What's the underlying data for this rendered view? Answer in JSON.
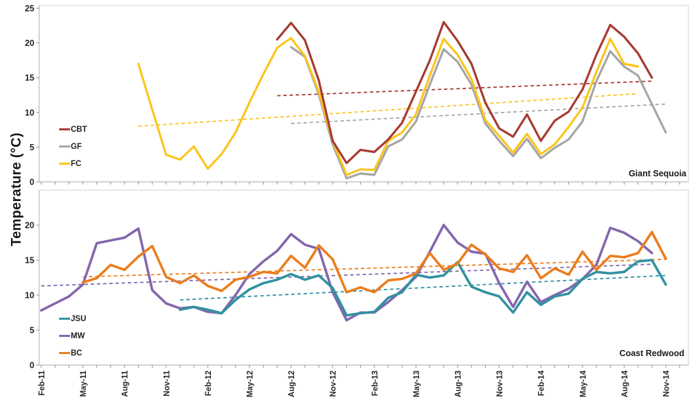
{
  "figure": {
    "y_axis_title": "Temperature (°C)",
    "x_tick_labels_shown": [
      "Feb-11",
      "May-11",
      "Aug-11",
      "Nov-11",
      "Feb-12",
      "May-12",
      "Aug-12",
      "Nov-12",
      "Feb-13",
      "May-13",
      "Aug-13",
      "Nov-13",
      "Feb-14",
      "May-14",
      "Aug-14",
      "Nov-14"
    ]
  },
  "chart_data": [
    {
      "type": "line",
      "title": "Giant Sequoia",
      "ylabel": "Temperature (°C)",
      "xlabel": "",
      "ylim": [
        0,
        25
      ],
      "yticks": [
        0,
        5,
        10,
        15,
        20,
        25
      ],
      "grid": false,
      "legend_position": "left-middle-inside",
      "x": [
        "Feb-11",
        "Mar-11",
        "Apr-11",
        "May-11",
        "Jun-11",
        "Jul-11",
        "Aug-11",
        "Sep-11",
        "Oct-11",
        "Nov-11",
        "Dec-11",
        "Jan-12",
        "Feb-12",
        "Mar-12",
        "Apr-12",
        "May-12",
        "Jun-12",
        "Jul-12",
        "Aug-12",
        "Sep-12",
        "Oct-12",
        "Nov-12",
        "Dec-12",
        "Jan-13",
        "Feb-13",
        "Mar-13",
        "Apr-13",
        "May-13",
        "Jun-13",
        "Jul-13",
        "Aug-13",
        "Sep-13",
        "Oct-13",
        "Nov-13",
        "Dec-13",
        "Jan-14",
        "Feb-14",
        "Mar-14",
        "Apr-14",
        "May-14",
        "Jun-14",
        "Jul-14",
        "Aug-14",
        "Sep-14",
        "Oct-14",
        "Nov-14"
      ],
      "series": [
        {
          "name": "CBT",
          "color": "#A63A32",
          "values": [
            null,
            null,
            null,
            null,
            null,
            null,
            null,
            null,
            null,
            null,
            null,
            null,
            null,
            null,
            null,
            null,
            null,
            20.5,
            22.9,
            20.4,
            14.6,
            5.9,
            2.7,
            4.6,
            4.3,
            6.1,
            8.5,
            13.0,
            17.5,
            23.0,
            20.3,
            17.0,
            11.4,
            7.7,
            6.5,
            9.7,
            5.9,
            8.8,
            10.1,
            13.3,
            18.3,
            22.6,
            20.9,
            18.5,
            15.0,
            null
          ]
        },
        {
          "name": "GF",
          "color": "#A6A6A6",
          "values": [
            null,
            null,
            null,
            null,
            null,
            null,
            null,
            null,
            null,
            null,
            null,
            null,
            null,
            null,
            null,
            null,
            null,
            null,
            19.4,
            18.0,
            12.6,
            5.4,
            0.5,
            1.2,
            1.0,
            5.1,
            6.1,
            8.7,
            14.0,
            19.1,
            17.3,
            14.0,
            8.4,
            5.9,
            3.7,
            6.2,
            3.4,
            4.9,
            6.1,
            8.7,
            14.5,
            18.8,
            16.6,
            15.3,
            11.2,
            7.1
          ]
        },
        {
          "name": "FC",
          "color": "#FBC51E",
          "values": [
            null,
            null,
            null,
            null,
            null,
            null,
            null,
            17.0,
            10.4,
            3.9,
            3.2,
            5.1,
            1.9,
            4.0,
            7.1,
            11.4,
            15.5,
            19.3,
            20.7,
            18.1,
            13.0,
            5.9,
            1.0,
            1.8,
            1.7,
            5.9,
            7.1,
            9.7,
            15.3,
            20.6,
            18.3,
            14.8,
            8.9,
            6.6,
            4.2,
            6.9,
            4.0,
            5.4,
            7.9,
            10.7,
            15.8,
            20.6,
            17.0,
            16.6,
            null,
            null
          ]
        }
      ],
      "trendlines": [
        {
          "series": "CBT",
          "color": "#A63A32",
          "start_index": 17,
          "end_index": 44,
          "start_value": 12.4,
          "end_value": 14.5
        },
        {
          "series": "GF",
          "color": "#A6A6A6",
          "start_index": 18,
          "end_index": 45,
          "start_value": 8.4,
          "end_value": 11.2
        },
        {
          "series": "FC",
          "color": "#FBC51E",
          "start_index": 7,
          "end_index": 43,
          "start_value": 8.0,
          "end_value": 12.7
        }
      ]
    },
    {
      "type": "line",
      "title": "Coast Redwood",
      "ylabel": "Temperature (°C)",
      "xlabel": "",
      "ylim": [
        0,
        25
      ],
      "yticks": [
        0,
        5,
        10,
        15,
        20
      ],
      "grid": false,
      "legend_position": "left-middle-inside",
      "x": [
        "Feb-11",
        "Mar-11",
        "Apr-11",
        "May-11",
        "Jun-11",
        "Jul-11",
        "Aug-11",
        "Sep-11",
        "Oct-11",
        "Nov-11",
        "Dec-11",
        "Jan-12",
        "Feb-12",
        "Mar-12",
        "Apr-12",
        "May-12",
        "Jun-12",
        "Jul-12",
        "Aug-12",
        "Sep-12",
        "Oct-12",
        "Nov-12",
        "Dec-12",
        "Jan-13",
        "Feb-13",
        "Mar-13",
        "Apr-13",
        "May-13",
        "Jun-13",
        "Jul-13",
        "Aug-13",
        "Sep-13",
        "Oct-13",
        "Nov-13",
        "Dec-13",
        "Jan-14",
        "Feb-14",
        "Mar-14",
        "Apr-14",
        "May-14",
        "Jun-14",
        "Jul-14",
        "Aug-14",
        "Sep-14",
        "Oct-14",
        "Nov-14"
      ],
      "series": [
        {
          "name": "JSU",
          "color": "#3191A1",
          "values": [
            null,
            null,
            null,
            null,
            null,
            null,
            null,
            null,
            null,
            null,
            7.9,
            8.3,
            7.9,
            7.4,
            9.3,
            10.8,
            11.7,
            12.2,
            13.0,
            12.2,
            12.8,
            11.0,
            7.1,
            7.4,
            7.6,
            9.6,
            10.4,
            12.9,
            12.5,
            12.8,
            14.7,
            11.2,
            10.4,
            9.8,
            7.5,
            10.4,
            8.6,
            9.8,
            10.2,
            12.3,
            13.3,
            13.1,
            13.3,
            14.8,
            15.0,
            11.5
          ]
        },
        {
          "name": "MW",
          "color": "#8467AD",
          "values": [
            7.8,
            8.8,
            9.8,
            11.5,
            17.4,
            17.8,
            18.2,
            19.5,
            10.7,
            8.8,
            8.1,
            8.3,
            7.6,
            7.4,
            10.0,
            13.0,
            14.8,
            16.3,
            18.7,
            17.2,
            16.6,
            10.4,
            6.4,
            7.5,
            7.5,
            9.0,
            10.7,
            12.6,
            16.2,
            20.0,
            17.5,
            16.2,
            15.9,
            11.7,
            8.3,
            11.9,
            9.0,
            10.0,
            10.9,
            12.3,
            14.3,
            19.6,
            18.9,
            17.7,
            16.0,
            null
          ]
        },
        {
          "name": "BC",
          "color": "#EB7D1E",
          "values": [
            null,
            null,
            null,
            11.8,
            12.4,
            14.3,
            13.6,
            15.5,
            17.0,
            12.6,
            11.7,
            12.8,
            11.3,
            10.6,
            12.2,
            12.6,
            13.3,
            13.1,
            15.6,
            13.9,
            17.1,
            15.1,
            10.4,
            11.1,
            10.4,
            12.1,
            12.3,
            13.1,
            16.0,
            13.6,
            14.5,
            17.2,
            15.8,
            13.8,
            13.3,
            15.7,
            12.4,
            13.8,
            12.9,
            16.2,
            13.6,
            15.6,
            15.4,
            16.0,
            19.0,
            15.2
          ]
        }
      ],
      "trendlines": [
        {
          "series": "JSU",
          "color": "#3191A1",
          "start_index": 10,
          "end_index": 45,
          "start_value": 9.3,
          "end_value": 12.8
        },
        {
          "series": "MW",
          "color": "#8467AD",
          "start_index": 0,
          "end_index": 44,
          "start_value": 11.3,
          "end_value": 14.4
        },
        {
          "series": "BC",
          "color": "#EB7D1E",
          "start_index": 3,
          "end_index": 45,
          "start_value": 12.6,
          "end_value": 15.1
        }
      ]
    }
  ]
}
